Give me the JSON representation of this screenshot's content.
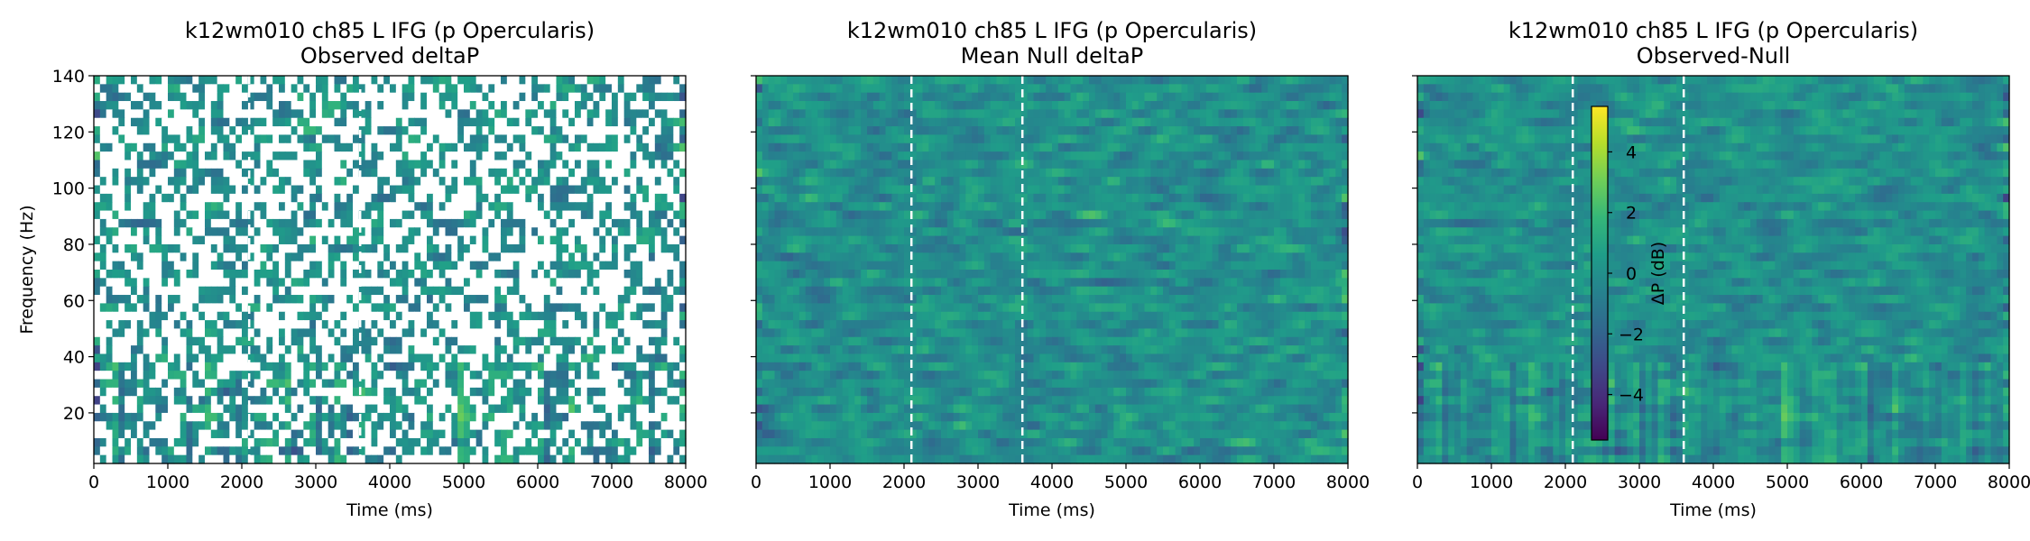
{
  "chart_data": [
    {
      "type": "heatmap",
      "title": "k12wm010 ch85 L IFG (p Opercularis)",
      "subtitle": "Observed deltaP",
      "xlabel": "Time (ms)",
      "ylabel": "Frequency (Hz)",
      "xlim": [
        0,
        8000
      ],
      "ylim": [
        2,
        140
      ],
      "xticks": [
        0,
        1000,
        2000,
        3000,
        4000,
        5000,
        6000,
        7000,
        8000
      ],
      "yticks": [
        20,
        40,
        60,
        80,
        100,
        120,
        140
      ],
      "colormap": "viridis",
      "value_range_db": [
        -5.5,
        5.5
      ],
      "masked_bins": "white where not significant",
      "event_lines_ms": [
        2100,
        3600
      ]
    },
    {
      "type": "heatmap",
      "title": "k12wm010 ch85 L IFG (p Opercularis)",
      "subtitle": "Mean Null deltaP",
      "xlabel": "Time (ms)",
      "ylabel": "",
      "xlim": [
        0,
        8000
      ],
      "ylim": [
        2,
        140
      ],
      "xticks": [
        0,
        1000,
        2000,
        3000,
        4000,
        5000,
        6000,
        7000,
        8000
      ],
      "yticks": [
        20,
        40,
        60,
        80,
        100,
        120,
        140
      ],
      "colormap": "viridis",
      "value_range_db": [
        -0.3,
        0.3
      ],
      "event_lines_ms": [
        2100,
        3600
      ]
    },
    {
      "type": "heatmap",
      "title": "k12wm010 ch85 L IFG (p Opercularis)",
      "subtitle": "Observed-Null",
      "xlabel": "Time (ms)",
      "ylabel": "",
      "xlim": [
        0,
        8000
      ],
      "ylim": [
        2,
        140
      ],
      "xticks": [
        0,
        1000,
        2000,
        3000,
        4000,
        5000,
        6000,
        7000,
        8000
      ],
      "yticks": [
        20,
        40,
        60,
        80,
        100,
        120,
        140
      ],
      "colormap": "viridis",
      "value_range_db": [
        -5.5,
        5.5
      ],
      "event_lines_ms": [
        2100,
        3600
      ],
      "colorbar": {
        "label": "ΔP (dB)",
        "ticks": [
          -4,
          -2,
          0,
          2,
          4
        ],
        "range": [
          -5.5,
          5.5
        ]
      }
    }
  ],
  "colors": {
    "viridis": [
      "#440154",
      "#482878",
      "#3e4989",
      "#31688e",
      "#26828e",
      "#1f9e89",
      "#35b779",
      "#6ece58",
      "#b5de2b",
      "#fde725"
    ],
    "event_line": "#ffffff",
    "axis": "#000000"
  }
}
